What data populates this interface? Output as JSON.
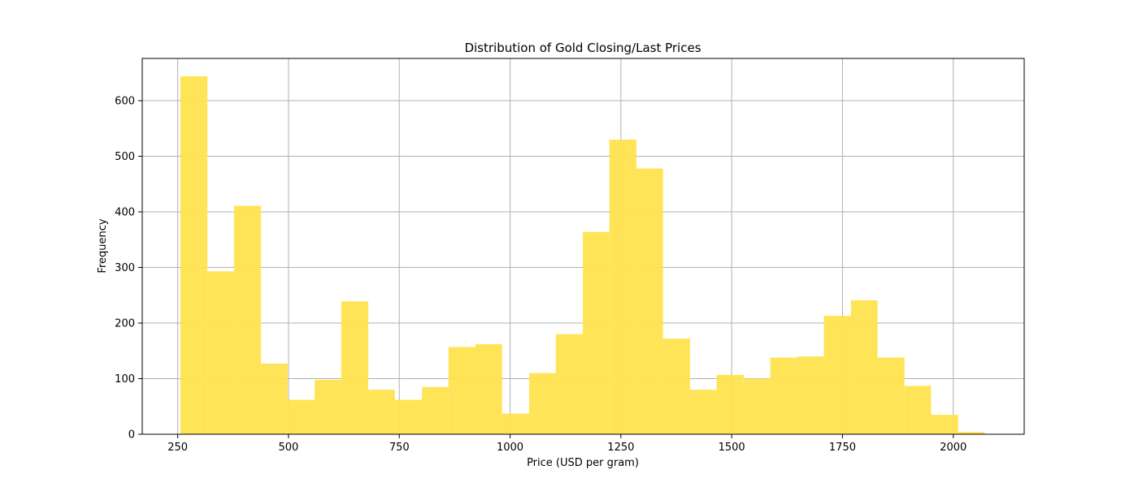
{
  "chart_data": {
    "type": "bar",
    "title": "Distribution of Gold Closing/Last Prices",
    "xlabel": "Price (USD per gram)",
    "ylabel": "Frequency",
    "xlim": [
      170,
      2160
    ],
    "ylim": [
      0,
      676
    ],
    "xticks": [
      250,
      500,
      750,
      1000,
      1250,
      1500,
      1750,
      2000
    ],
    "yticks": [
      0,
      100,
      200,
      300,
      400,
      500,
      600
    ],
    "grid": true,
    "bar_color": "#FFE34F",
    "bins": [
      {
        "x0": 256,
        "x1": 317,
        "value": 644
      },
      {
        "x0": 317,
        "x1": 377,
        "value": 293
      },
      {
        "x0": 377,
        "x1": 438,
        "value": 411
      },
      {
        "x0": 438,
        "x1": 498,
        "value": 127
      },
      {
        "x0": 498,
        "x1": 559,
        "value": 62
      },
      {
        "x0": 559,
        "x1": 619,
        "value": 98
      },
      {
        "x0": 619,
        "x1": 680,
        "value": 239
      },
      {
        "x0": 680,
        "x1": 740,
        "value": 80
      },
      {
        "x0": 740,
        "x1": 801,
        "value": 62
      },
      {
        "x0": 801,
        "x1": 861,
        "value": 85
      },
      {
        "x0": 861,
        "x1": 922,
        "value": 157
      },
      {
        "x0": 922,
        "x1": 982,
        "value": 162
      },
      {
        "x0": 982,
        "x1": 1043,
        "value": 37
      },
      {
        "x0": 1043,
        "x1": 1103,
        "value": 110
      },
      {
        "x0": 1103,
        "x1": 1164,
        "value": 180
      },
      {
        "x0": 1164,
        "x1": 1224,
        "value": 364
      },
      {
        "x0": 1224,
        "x1": 1285,
        "value": 530
      },
      {
        "x0": 1285,
        "x1": 1345,
        "value": 478
      },
      {
        "x0": 1345,
        "x1": 1406,
        "value": 172
      },
      {
        "x0": 1406,
        "x1": 1466,
        "value": 80
      },
      {
        "x0": 1466,
        "x1": 1527,
        "value": 107
      },
      {
        "x0": 1527,
        "x1": 1587,
        "value": 100
      },
      {
        "x0": 1587,
        "x1": 1648,
        "value": 138
      },
      {
        "x0": 1648,
        "x1": 1708,
        "value": 140
      },
      {
        "x0": 1708,
        "x1": 1769,
        "value": 213
      },
      {
        "x0": 1769,
        "x1": 1829,
        "value": 241
      },
      {
        "x0": 1829,
        "x1": 1890,
        "value": 138
      },
      {
        "x0": 1890,
        "x1": 1950,
        "value": 87
      },
      {
        "x0": 1950,
        "x1": 2011,
        "value": 35
      },
      {
        "x0": 2011,
        "x1": 2071,
        "value": 4
      }
    ]
  }
}
